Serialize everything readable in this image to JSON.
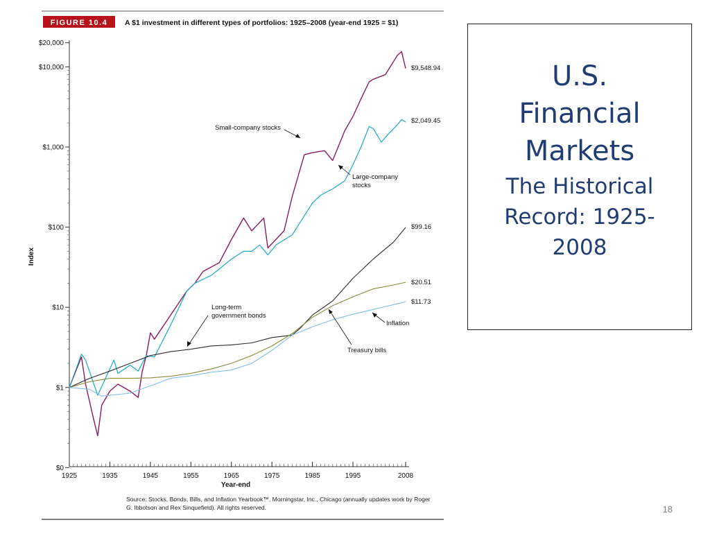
{
  "figure": {
    "badge": "FIGURE 10.4",
    "title": "A $1 investment in different types of portfolios: 1925–2008 (year-end 1925 = $1)",
    "source_line1": "Source: Stocks, Bonds, Bills, and Inflation Yearbook™, Morningstar, Inc., Chicago (annually updates work by Roger",
    "source_line2": "G. Ibbotson and Rex Sinquefield). All rights reserved."
  },
  "slide": {
    "title_lines": [
      "U.S.",
      "Financial",
      "Markets"
    ],
    "subtitle_lines": [
      "The Historical",
      "Record: 1925-",
      "2008"
    ],
    "page_number": "18"
  },
  "colors": {
    "small_stocks": "#8b1a5e",
    "large_stocks": "#1ba7cf",
    "lt_gov_bonds": "#2b2b2b",
    "treasury_bills": "#8a8a38",
    "inflation": "#7fbfe6",
    "badge_bg": "#b5121b",
    "title_text": "#1f3d73"
  },
  "chart_data": {
    "type": "line",
    "title": "A $1 investment in different types of portfolios: 1925–2008 (year-end 1925 = $1)",
    "xlabel": "Year-end",
    "ylabel": "Index",
    "y_scale": "log",
    "xlim": [
      1925,
      2008
    ],
    "ylim": [
      0.1,
      20000
    ],
    "x_ticks": [
      1925,
      1935,
      1945,
      1955,
      1965,
      1975,
      1985,
      1995,
      2008
    ],
    "y_ticks": [
      {
        "value": 0.1,
        "label": "$0"
      },
      {
        "value": 1,
        "label": "$1"
      },
      {
        "value": 10,
        "label": "$10"
      },
      {
        "value": 100,
        "label": "$100"
      },
      {
        "value": 1000,
        "label": "$1,000"
      },
      {
        "value": 10000,
        "label": "$10,000"
      },
      {
        "value": 20000,
        "label": "$20,000"
      }
    ],
    "series": [
      {
        "key": "small_stocks",
        "name": "Small-company stocks",
        "end_label": "$9,548.94",
        "x": [
          1925,
          1927,
          1928,
          1929,
          1931,
          1932,
          1933,
          1935,
          1937,
          1940,
          1942,
          1943,
          1944,
          1945,
          1946,
          1950,
          1954,
          1956,
          1958,
          1962,
          1965,
          1968,
          1970,
          1973,
          1974,
          1978,
          1980,
          1983,
          1985,
          1988,
          1990,
          1993,
          1995,
          1997,
          1999,
          2000,
          2003,
          2006,
          2007,
          2008
        ],
        "y": [
          1.0,
          1.8,
          2.4,
          1.1,
          0.4,
          0.25,
          0.6,
          0.9,
          1.1,
          0.9,
          0.75,
          1.6,
          2.5,
          4.8,
          4.0,
          8.0,
          16,
          20,
          28,
          36,
          70,
          130,
          90,
          130,
          55,
          90,
          240,
          800,
          850,
          900,
          680,
          1600,
          2400,
          4000,
          6500,
          7000,
          8000,
          14000,
          15500,
          9548.94
        ]
      },
      {
        "key": "large_stocks",
        "name": "Large-company stocks",
        "end_label": "$2,049.45",
        "x": [
          1925,
          1928,
          1929,
          1932,
          1936,
          1937,
          1940,
          1942,
          1944,
          1946,
          1950,
          1954,
          1956,
          1960,
          1962,
          1965,
          1968,
          1970,
          1972,
          1974,
          1976,
          1980,
          1985,
          1987,
          1990,
          1993,
          1995,
          1997,
          1999,
          2000,
          2002,
          2004,
          2006,
          2007,
          2008
        ],
        "y": [
          1.0,
          2.6,
          2.2,
          0.8,
          2.2,
          1.5,
          1.9,
          1.6,
          2.5,
          2.4,
          6,
          16,
          20,
          25,
          30,
          40,
          50,
          50,
          60,
          45,
          60,
          80,
          200,
          250,
          300,
          380,
          600,
          1000,
          1800,
          1700,
          1150,
          1500,
          1900,
          2200,
          2049.45
        ]
      },
      {
        "key": "lt_gov_bonds",
        "name": "Long-term government bonds",
        "end_label": "$99.16",
        "x": [
          1925,
          1930,
          1935,
          1940,
          1945,
          1950,
          1955,
          1960,
          1965,
          1970,
          1975,
          1980,
          1982,
          1985,
          1990,
          1995,
          2000,
          2005,
          2008
        ],
        "y": [
          1.0,
          1.3,
          1.6,
          2.0,
          2.5,
          2.8,
          3.0,
          3.3,
          3.4,
          3.6,
          4.2,
          4.5,
          5.5,
          8.0,
          12,
          23,
          40,
          65,
          99.16
        ]
      },
      {
        "key": "treasury_bills",
        "name": "Treasury bills",
        "end_label": "$20.51",
        "x": [
          1925,
          1930,
          1935,
          1940,
          1945,
          1950,
          1955,
          1960,
          1965,
          1970,
          1975,
          1980,
          1985,
          1990,
          1995,
          2000,
          2005,
          2008
        ],
        "y": [
          1.0,
          1.18,
          1.3,
          1.3,
          1.32,
          1.38,
          1.5,
          1.7,
          2.0,
          2.5,
          3.3,
          4.7,
          7.5,
          10.5,
          13.5,
          17,
          19,
          20.51
        ]
      },
      {
        "key": "inflation",
        "name": "Inflation",
        "end_label": "$11.73",
        "x": [
          1925,
          1930,
          1933,
          1940,
          1945,
          1950,
          1955,
          1960,
          1965,
          1970,
          1975,
          1980,
          1985,
          1990,
          1995,
          2000,
          2005,
          2008
        ],
        "y": [
          1.0,
          0.95,
          0.78,
          0.85,
          1.05,
          1.3,
          1.4,
          1.55,
          1.65,
          2.0,
          2.9,
          4.5,
          5.7,
          7.0,
          8.2,
          9.4,
          10.8,
          11.73
        ]
      }
    ]
  }
}
